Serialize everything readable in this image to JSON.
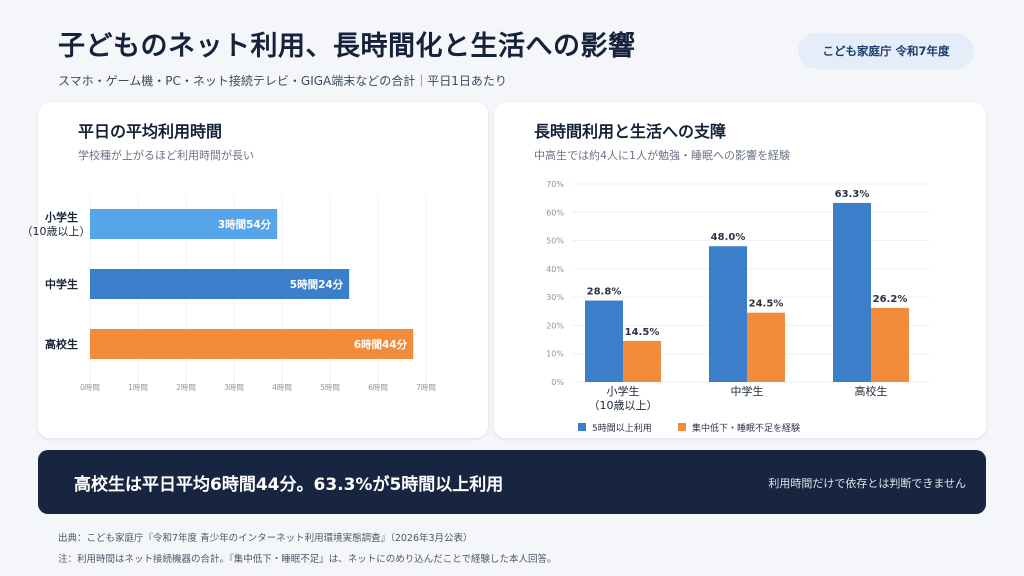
{
  "header": {
    "title": "子どものネット利用、長時間化と生活への影響",
    "subtitle": "スマホ・ゲーム機・PC・ネット接続テレビ・GIGA端末などの合計｜平日1日あたり",
    "badge": "こども家庭庁 令和7年度"
  },
  "left_card": {
    "title": "平日の平均利用時間",
    "subtitle": "学校種が上がるほど利用時間が長い"
  },
  "right_card": {
    "title": "長時間利用と生活への支障",
    "subtitle": "中高生では約4人に1人が勉強・睡眠への影響を経験"
  },
  "banner": {
    "main": "高校生は平日平均6時間44分。63.3%が5時間以上利用",
    "note": "利用時間だけで依存とは判断できません"
  },
  "footer": {
    "source": "出典：こども家庭庁『令和7年度 青少年のインターネット利用環境実態調査』（2026年3月公表）",
    "note": "注：利用時間はネット接続機器の合計。『集中低下・睡眠不足』は、ネットにのめり込んだことで経験した本人回答。"
  },
  "chart_data": [
    {
      "type": "bar",
      "orientation": "horizontal",
      "categories": [
        [
          "小学生",
          "（10歳以上）"
        ],
        [
          "中学生"
        ],
        [
          "高校生"
        ]
      ],
      "values": [
        3.9,
        5.4,
        6.733
      ],
      "data_labels": [
        "3時間54分",
        "5時間24分",
        "6時間44分"
      ],
      "colors": [
        "#55a5e8",
        "#3b7fcb",
        "#f08c3c"
      ],
      "xlim": [
        0,
        7
      ],
      "x_ticks": [
        0,
        1,
        2,
        3,
        4,
        5,
        6,
        7
      ],
      "x_tick_labels": [
        "0時間",
        "1時間",
        "2時間",
        "3時間",
        "4時間",
        "5時間",
        "6時間",
        "7時間"
      ],
      "grid": true
    },
    {
      "type": "bar",
      "orientation": "vertical",
      "categories": [
        [
          "小学生",
          "（10歳以上）"
        ],
        [
          "中学生"
        ],
        [
          "高校生"
        ]
      ],
      "series": [
        {
          "name": "5時間以上利用",
          "values": [
            28.8,
            48.0,
            63.3
          ],
          "labels": [
            "28.8%",
            "48.0%",
            "63.3%"
          ],
          "color": "#3b7fcb"
        },
        {
          "name": "集中低下・睡眠不足を経験",
          "values": [
            14.5,
            24.5,
            26.2
          ],
          "labels": [
            "14.5%",
            "24.5%",
            "26.2%"
          ],
          "color": "#f08c3c"
        }
      ],
      "ylim": [
        0,
        70
      ],
      "y_ticks": [
        0,
        10,
        20,
        30,
        40,
        50,
        60,
        70
      ],
      "y_tick_labels": [
        "0%",
        "10%",
        "20%",
        "30%",
        "40%",
        "50%",
        "60%",
        "70%"
      ],
      "grid": true,
      "legend": "bottom"
    }
  ]
}
